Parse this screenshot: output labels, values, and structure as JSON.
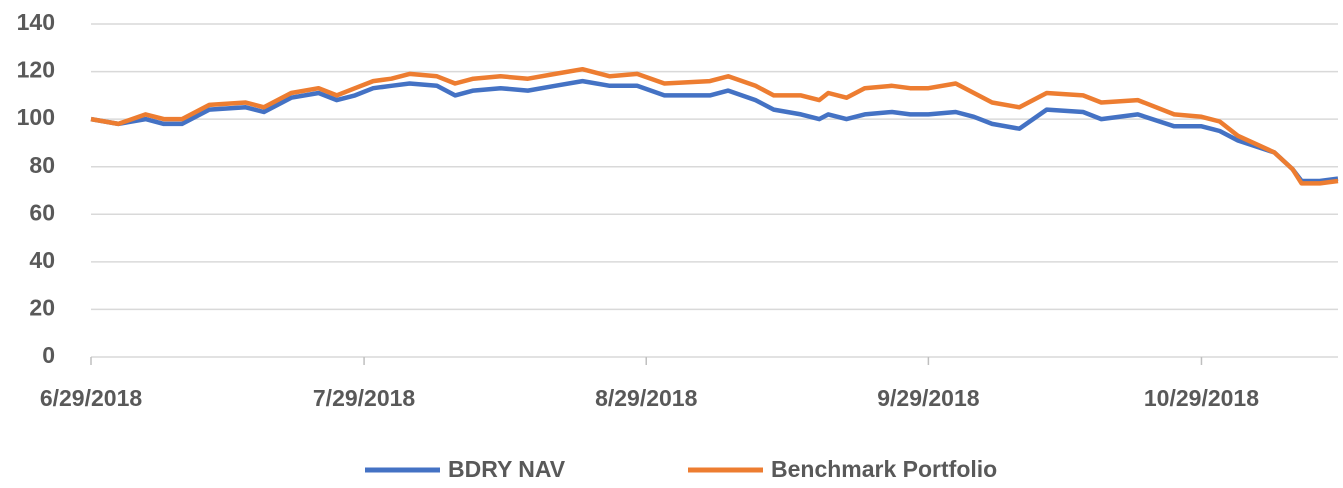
{
  "chart_data": {
    "type": "line",
    "x": [
      "6/29/2018",
      "7/2/2018",
      "7/5/2018",
      "7/7/2018",
      "7/9/2018",
      "7/12/2018",
      "7/16/2018",
      "7/18/2018",
      "7/21/2018",
      "7/24/2018",
      "7/26/2018",
      "7/28/2018",
      "7/30/2018",
      "8/1/2018",
      "8/3/2018",
      "8/6/2018",
      "8/8/2018",
      "8/10/2018",
      "8/13/2018",
      "8/16/2018",
      "8/19/2018",
      "8/22/2018",
      "8/25/2018",
      "8/28/2018",
      "8/31/2018",
      "9/5/2018",
      "9/7/2018",
      "9/10/2018",
      "9/12/2018",
      "9/15/2018",
      "9/17/2018",
      "9/18/2018",
      "9/20/2018",
      "9/22/2018",
      "9/25/2018",
      "9/27/2018",
      "9/29/2018",
      "10/2/2018",
      "10/4/2018",
      "10/6/2018",
      "10/9/2018",
      "10/12/2018",
      "10/16/2018",
      "10/18/2018",
      "10/22/2018",
      "10/26/2018",
      "10/29/2018",
      "10/31/2018",
      "11/2/2018",
      "11/6/2018",
      "11/8/2018",
      "11/9/2018",
      "11/11/2018",
      "11/13/2018"
    ],
    "series": [
      {
        "name": "BDRY NAV",
        "color": "#4472c4",
        "values": [
          100,
          98,
          100,
          98,
          98,
          104,
          105,
          103,
          109,
          111,
          108,
          110,
          113,
          114,
          115,
          114,
          110,
          112,
          113,
          112,
          114,
          116,
          114,
          114,
          110,
          110,
          112,
          108,
          104,
          102,
          100,
          102,
          100,
          102,
          103,
          102,
          102,
          103,
          101,
          98,
          96,
          104,
          103,
          100,
          102,
          97,
          97,
          95,
          91,
          86,
          79,
          74,
          74,
          75
        ]
      },
      {
        "name": "Benchmark Portfolio",
        "color": "#ed7d31",
        "values": [
          100,
          98,
          102,
          100,
          100,
          106,
          107,
          105,
          111,
          113,
          110,
          113,
          116,
          117,
          119,
          118,
          115,
          117,
          118,
          117,
          119,
          121,
          118,
          119,
          115,
          116,
          118,
          114,
          110,
          110,
          108,
          111,
          109,
          113,
          114,
          113,
          113,
          115,
          111,
          107,
          105,
          111,
          110,
          107,
          108,
          102,
          101,
          99,
          93,
          86,
          79,
          73,
          73,
          74
        ]
      }
    ],
    "xlim": [
      "6/29/2018",
      "11/13/2018"
    ],
    "xticks": [
      "6/29/2018",
      "7/29/2018",
      "8/29/2018",
      "9/29/2018",
      "10/29/2018"
    ],
    "ylim": [
      0,
      140
    ],
    "yticks": [
      0,
      20,
      40,
      60,
      80,
      100,
      120,
      140
    ],
    "grid": true
  }
}
